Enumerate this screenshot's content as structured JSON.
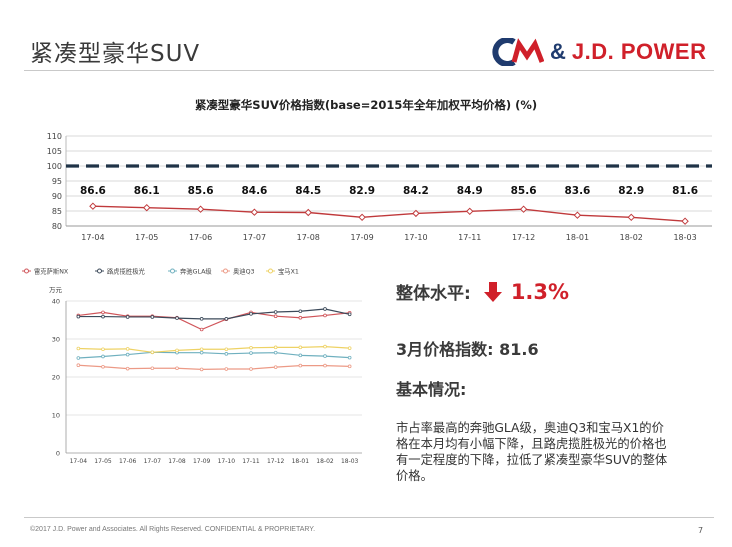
{
  "slide": {
    "title": "紧凑型豪华SUV",
    "logo_amp": "&",
    "logo_brand": "J.D. POWER",
    "footer": "©2017 J.D. Power and Associates. All Rights Reserved. CONFIDENTIAL & PROPRIETARY.",
    "page_number": "7"
  },
  "summary": {
    "overall_label": "整体水平:",
    "overall_value": "1.3%",
    "march_index": "3月价格指数: 81.6",
    "basic_label": "基本情况:",
    "description": "市占率最高的奔驰GLA级，奥迪Q3和宝马X1的价格在本月均有小幅下降，且路虎揽胜极光的价格也有一定程度的下降，拉低了紧凑型豪华SUV的整体价格。"
  },
  "colors": {
    "index_line": "#c0393b",
    "baseline": "#1f3347",
    "accent_red": "#d0202a",
    "brand_blue": "#1f3b6e"
  },
  "chart_data": [
    {
      "type": "line",
      "title": "紧凑型豪华SUV价格指数(base=2015年全年加权平均价格) (%)",
      "categories": [
        "17-04",
        "17-05",
        "17-06",
        "17-07",
        "17-08",
        "17-09",
        "17-10",
        "17-11",
        "17-12",
        "18-01",
        "18-02",
        "18-03"
      ],
      "series": [
        {
          "values": [
            86.6,
            86.1,
            85.6,
            84.6,
            84.5,
            82.9,
            84.2,
            84.9,
            85.6,
            83.6,
            82.9,
            81.6
          ]
        }
      ],
      "baseline": 100,
      "data_labels": [
        "86.6",
        "86.1",
        "85.6",
        "84.6",
        "84.5",
        "82.9",
        "84.2",
        "84.9",
        "85.6",
        "83.6",
        "82.9",
        "81.6"
      ],
      "yticks": [
        "80",
        "85",
        "90",
        "95",
        "100",
        "105",
        "110"
      ],
      "ylim": [
        80,
        110
      ],
      "grid": true
    },
    {
      "type": "line",
      "ylabel": "万元",
      "categories": [
        "17-04",
        "17-05",
        "17-06",
        "17-07",
        "17-08",
        "17-09",
        "17-10",
        "17-11",
        "17-12",
        "18-01",
        "18-02",
        "18-03"
      ],
      "ylim": [
        0,
        40
      ],
      "yticks": [
        "0",
        "10",
        "20",
        "30",
        "40"
      ],
      "legend_position": "top",
      "grid": true,
      "series": [
        {
          "name": "雷克萨斯NX",
          "color": "#d0555a",
          "values": [
            36.2,
            37.0,
            36.0,
            36.0,
            35.6,
            32.5,
            35.2,
            37.0,
            36.0,
            35.6,
            36.2,
            36.9
          ]
        },
        {
          "name": "路虎揽胜极光",
          "color": "#3c4a5a",
          "values": [
            35.9,
            35.9,
            35.8,
            35.8,
            35.5,
            35.3,
            35.3,
            36.6,
            37.1,
            37.3,
            37.9,
            36.5
          ]
        },
        {
          "name": "奔驰GLA级",
          "color": "#6fb0bf",
          "values": [
            25.0,
            25.4,
            25.9,
            26.5,
            26.4,
            26.4,
            26.1,
            26.3,
            26.4,
            25.7,
            25.5,
            25.1
          ]
        },
        {
          "name": "奥迪Q3",
          "color": "#ec9a86",
          "values": [
            23.1,
            22.7,
            22.2,
            22.3,
            22.3,
            22.0,
            22.1,
            22.1,
            22.6,
            23.0,
            23.0,
            22.8
          ]
        },
        {
          "name": "宝马X1",
          "color": "#eed264",
          "values": [
            27.5,
            27.3,
            27.4,
            26.5,
            27.0,
            27.3,
            27.3,
            27.7,
            27.8,
            27.8,
            28.0,
            27.6
          ]
        }
      ]
    }
  ]
}
